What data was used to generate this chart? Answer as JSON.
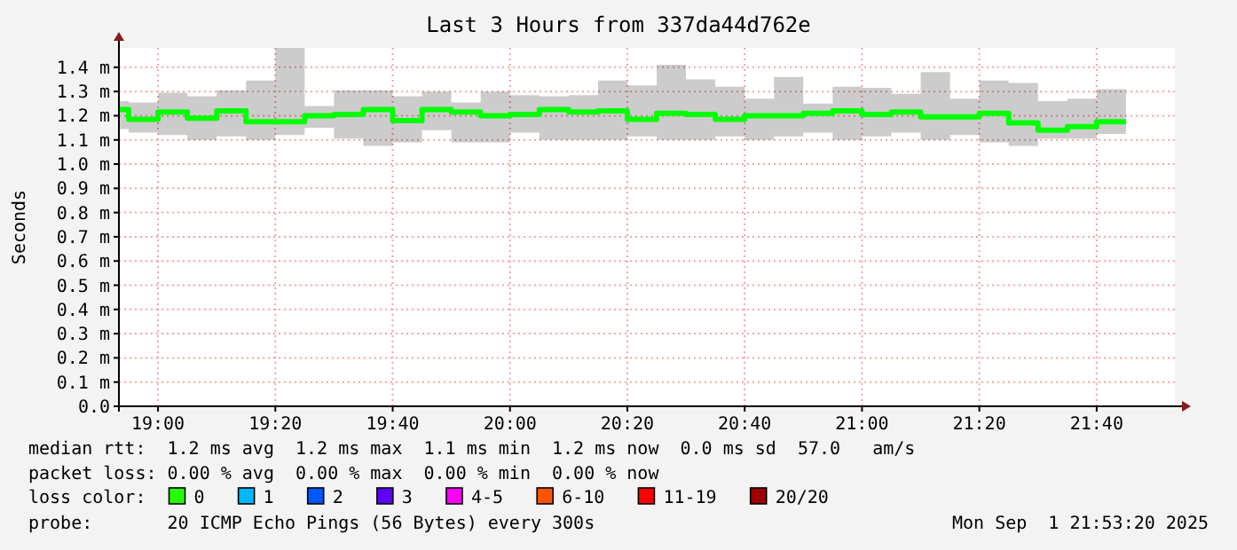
{
  "chart_data": {
    "type": "step",
    "title": "Last 3 Hours from 337da44d762e",
    "ylabel": "Seconds",
    "x": [
      18.8889,
      18.9167,
      19.0,
      19.0833,
      19.1667,
      19.25,
      19.3333,
      19.4167,
      19.5,
      19.5833,
      19.6667,
      19.75,
      19.8333,
      19.9167,
      20.0,
      20.0833,
      20.1667,
      20.25,
      20.3333,
      20.4167,
      20.5,
      20.5833,
      20.6667,
      20.75,
      20.8333,
      20.9167,
      21.0,
      21.0833,
      21.1667,
      21.25,
      21.3333,
      21.4167,
      21.5,
      21.5833,
      21.6667,
      21.75
    ],
    "series": [
      {
        "color": "#00ff00",
        "values": [
          1.225,
          1.185,
          1.215,
          1.19,
          1.22,
          1.175,
          1.175,
          1.2,
          1.205,
          1.225,
          1.18,
          1.225,
          1.215,
          1.2,
          1.205,
          1.225,
          1.215,
          1.22,
          1.185,
          1.21,
          1.205,
          1.185,
          1.2,
          1.2,
          1.21,
          1.22,
          1.205,
          1.215,
          1.195,
          1.195,
          1.21,
          1.17,
          1.14,
          1.155,
          1.175,
          1.175
        ],
        "lower": [
          1.145,
          1.13,
          1.12,
          1.1,
          1.115,
          1.1,
          1.12,
          1.15,
          1.105,
          1.075,
          1.09,
          1.14,
          1.09,
          1.09,
          1.13,
          1.1,
          1.1,
          1.1,
          1.115,
          1.1,
          1.1,
          1.115,
          1.1,
          1.115,
          1.13,
          1.1,
          1.115,
          1.13,
          1.1,
          1.12,
          1.09,
          1.075,
          1.105,
          1.105,
          1.125,
          1.125
        ],
        "upper": [
          1.26,
          1.255,
          1.295,
          1.28,
          1.305,
          1.345,
          1.48,
          1.24,
          1.305,
          1.305,
          1.28,
          1.3,
          1.255,
          1.3,
          1.285,
          1.28,
          1.285,
          1.345,
          1.325,
          1.41,
          1.35,
          1.32,
          1.27,
          1.36,
          1.25,
          1.32,
          1.315,
          1.29,
          1.38,
          1.27,
          1.345,
          1.335,
          1.26,
          1.27,
          1.31,
          1.31
        ]
      }
    ],
    "xlim": [
      18.8889,
      21.8889
    ],
    "xticks": [
      {
        "value": 19,
        "label": "19:00"
      },
      {
        "value": 19.3333,
        "label": "19:20"
      },
      {
        "value": 19.6667,
        "label": "19:40"
      },
      {
        "value": 20,
        "label": "20:00"
      },
      {
        "value": 20.3333,
        "label": "20:20"
      },
      {
        "value": 20.6667,
        "label": "20:40"
      },
      {
        "value": 21,
        "label": "21:00"
      },
      {
        "value": 21.3333,
        "label": "21:20"
      },
      {
        "value": 21.6667,
        "label": "21:40"
      }
    ],
    "ylim": [
      0,
      1.48
    ],
    "yticks": [
      {
        "value": 0,
        "label": "0.0"
      },
      {
        "value": 0.1,
        "label": "0.1 m"
      },
      {
        "value": 0.2,
        "label": "0.2 m"
      },
      {
        "value": 0.3,
        "label": "0.3 m"
      },
      {
        "value": 0.4,
        "label": "0.4 m"
      },
      {
        "value": 0.5,
        "label": "0.5 m"
      },
      {
        "value": 0.6,
        "label": "0.6 m"
      },
      {
        "value": 0.7,
        "label": "0.7 m"
      },
      {
        "value": 0.8,
        "label": "0.8 m"
      },
      {
        "value": 0.9,
        "label": "0.9 m"
      },
      {
        "value": 1.0,
        "label": "1.0 m"
      },
      {
        "value": 1.1,
        "label": "1.1 m"
      },
      {
        "value": 1.2,
        "label": "1.2 m"
      },
      {
        "value": 1.3,
        "label": "1.3 m"
      },
      {
        "value": 1.4,
        "label": "1.4 m"
      }
    ],
    "grid": true,
    "annotations": [
      "median rtt:  1.2 ms avg  1.2 ms max  1.1 ms min  1.2 ms now  0.0 ms sd  57.0   am/s",
      "packet loss: 0.00 % avg  0.00 % max  0.00 % min  0.00 % now",
      "loss color:",
      "0",
      "1",
      "2",
      "3",
      "4-5",
      "6-10",
      "11-19",
      "20/20",
      "probe:       20 ICMP Echo Pings (56 Bytes) every 300s",
      "Mon Sep  1 21:53:20 2025"
    ]
  }
}
